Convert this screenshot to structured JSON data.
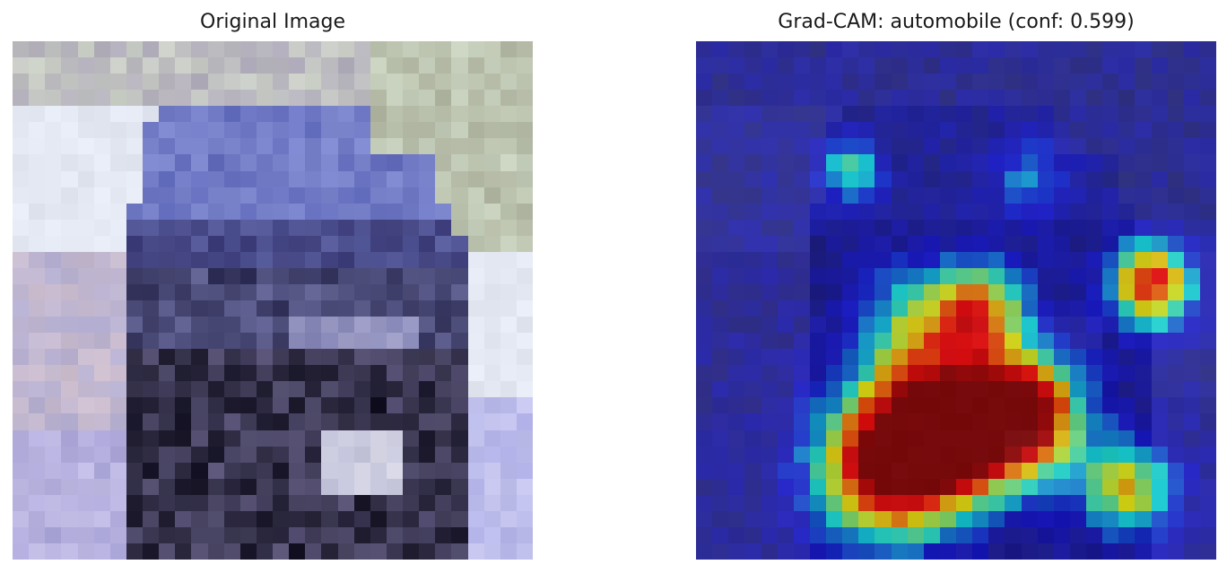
{
  "panels": {
    "original": {
      "title": "Original Image"
    },
    "gradcam": {
      "title": "Grad-CAM: automobile (conf: 0.599)"
    }
  },
  "heatmap": {
    "colormap": [
      "#000080",
      "#0000ff",
      "#00ffff",
      "#ffff00",
      "#ff0000",
      "#800000"
    ]
  }
}
